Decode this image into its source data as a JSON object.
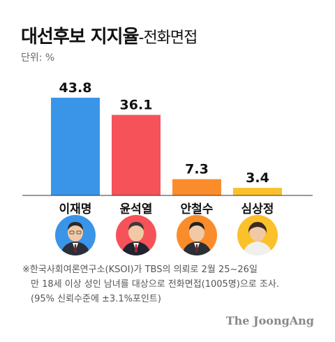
{
  "header": {
    "title": "대선후보 지지율",
    "subtitle": "-전화면접",
    "unit": "단위: %"
  },
  "chart_data": {
    "type": "bar",
    "categories": [
      "이재명",
      "윤석열",
      "안철수",
      "심상정"
    ],
    "values": [
      43.8,
      36.1,
      7.3,
      3.4
    ],
    "value_labels": [
      "43.8",
      "36.1",
      "7.3",
      "3.4"
    ],
    "colors": [
      "#3a95e8",
      "#f5525a",
      "#fb8c2c",
      "#fbc12b"
    ],
    "title": "대선후보 지지율",
    "xlabel": "",
    "ylabel": "",
    "ylim": [
      0,
      50
    ],
    "grid": false,
    "legend": "none"
  },
  "candidates": [
    {
      "name": "이재명",
      "bg": "#3a95e8",
      "icon": "candidate-photo-icon"
    },
    {
      "name": "윤석열",
      "bg": "#f5525a",
      "icon": "candidate-photo-icon"
    },
    {
      "name": "안철수",
      "bg": "#fb8c2c",
      "icon": "candidate-photo-icon"
    },
    {
      "name": "심상정",
      "bg": "#fbc12b",
      "icon": "candidate-photo-icon"
    }
  ],
  "footnote": {
    "line1": "※한국사회여론연구소(KSOI)가 TBS의 의뢰로 2월 25~26일",
    "line2": "만 18세 이상 성인 남녀를 대상으로 전화면접(1005명)으로 조사.",
    "line3": "(95% 신뢰수준에 ±3.1%포인트)"
  },
  "brand": "The JoongAng"
}
